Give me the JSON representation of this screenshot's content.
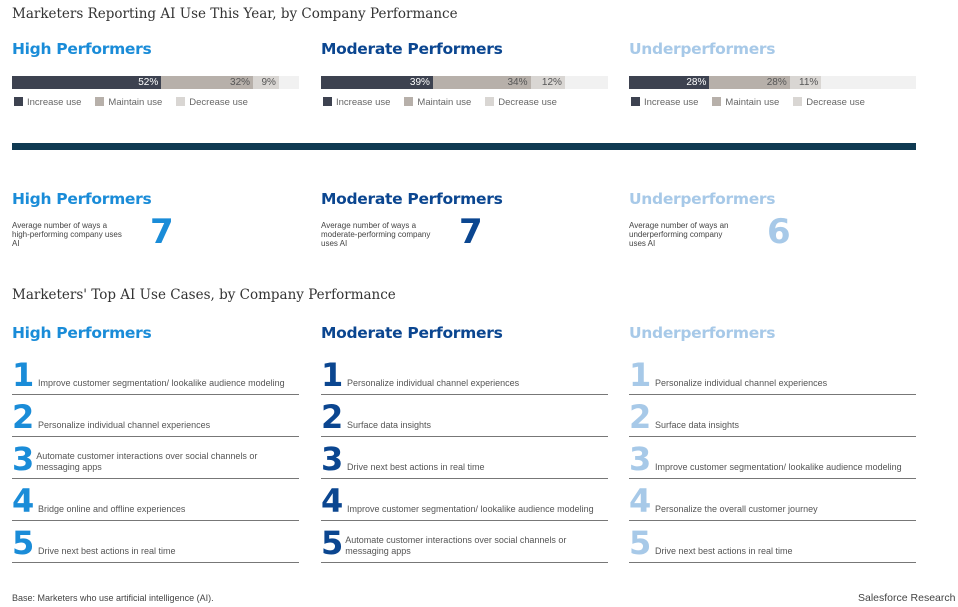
{
  "title1": "Marketers Reporting AI Use This Year, by Company Performance",
  "title2": "Marketers' Top AI Use Cases, by Company Performance",
  "colors": {
    "high": "#1a8cd8",
    "moderate": "#0b4690",
    "under": "#a7c9e8",
    "increase": "#3d4250",
    "maintain": "#b7b0aa",
    "decrease": "#d9d6d3",
    "divider": "#0f3a52"
  },
  "legend": {
    "increase": "Increase use",
    "maintain": "Maintain use",
    "decrease": "Decrease use"
  },
  "chart_data": {
    "type": "bar",
    "stacked": true,
    "categories": [
      "High Performers",
      "Moderate Performers",
      "Underperformers"
    ],
    "series": [
      {
        "name": "Increase use",
        "values": [
          52,
          39,
          28
        ],
        "labels": [
          "52%",
          "39%",
          "28%"
        ]
      },
      {
        "name": "Maintain use",
        "values": [
          32,
          34,
          28
        ],
        "labels": [
          "32%",
          "34%",
          "28%"
        ]
      },
      {
        "name": "Decrease use",
        "values": [
          9,
          12,
          11
        ],
        "labels": [
          "9%",
          "12%",
          "11%"
        ]
      }
    ],
    "xlim": [
      0,
      100
    ]
  },
  "columns": [
    {
      "name": "High Performers",
      "avg_text": "Average number of ways a high-performing company uses AI",
      "avg": "7",
      "items": [
        {
          "n": "1",
          "t": "Improve customer segmentation/ lookalike audience modeling"
        },
        {
          "n": "2",
          "t": "Personalize individual channel experiences"
        },
        {
          "n": "3",
          "t": "Automate customer interactions over social channels or messaging apps"
        },
        {
          "n": "4",
          "t": "Bridge online and offline experiences"
        },
        {
          "n": "5",
          "t": "Drive next best actions in real time"
        }
      ]
    },
    {
      "name": "Moderate Performers",
      "avg_text": "Average number of ways a moderate-performing company uses AI",
      "avg": "7",
      "items": [
        {
          "n": "1",
          "t": "Personalize individual channel experiences"
        },
        {
          "n": "2",
          "t": "Surface data insights"
        },
        {
          "n": "3",
          "t": "Drive next best actions in real time"
        },
        {
          "n": "4",
          "t": "Improve customer segmentation/ lookalike audience modeling"
        },
        {
          "n": "5",
          "t": "Automate customer interactions over social channels or messaging apps"
        }
      ]
    },
    {
      "name": "Underperformers",
      "avg_text": "Average number of ways an underperforming company uses AI",
      "avg": "6",
      "items": [
        {
          "n": "1",
          "t": "Personalize individual channel experiences"
        },
        {
          "n": "2",
          "t": "Surface data insights"
        },
        {
          "n": "3",
          "t": "Improve customer segmentation/ lookalike audience modeling"
        },
        {
          "n": "4",
          "t": "Personalize the overall customer journey"
        },
        {
          "n": "5",
          "t": "Drive next best actions in real time"
        }
      ]
    }
  ],
  "footer": {
    "base": "Base: Marketers who use artificial intelligence (AI).",
    "source": "Salesforce Research"
  }
}
